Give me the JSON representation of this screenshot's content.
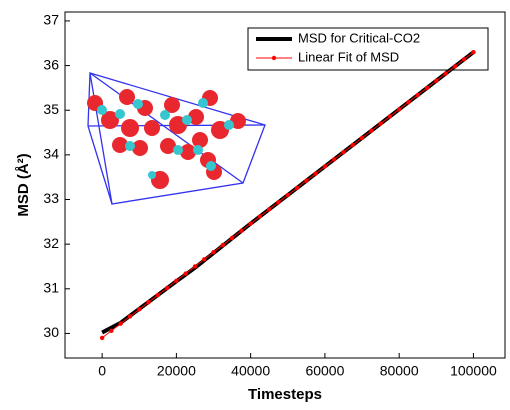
{
  "chart_data": {
    "type": "line",
    "x_label": "Timesteps",
    "y_label": "MSD (Å²)",
    "xlim": [
      -10000,
      108500
    ],
    "ylim": [
      29.45,
      37.2
    ],
    "xticks": [
      0,
      20000,
      40000,
      60000,
      80000,
      100000
    ],
    "yticks": [
      30,
      31,
      32,
      33,
      34,
      35,
      36,
      37
    ],
    "legend": "upper right",
    "series": [
      {
        "name": "MSD for Critical-CO2",
        "color": "#000000",
        "style": "thick-line",
        "x": [
          0,
          5000,
          10000,
          15000,
          20000,
          25000,
          30000,
          35000,
          40000,
          45000,
          50000,
          55000,
          60000,
          65000,
          70000,
          75000,
          80000,
          85000,
          90000,
          95000,
          100000
        ],
        "values": [
          30.02,
          30.24,
          30.55,
          30.86,
          31.17,
          31.47,
          31.8,
          32.13,
          32.46,
          32.78,
          33.1,
          33.42,
          33.74,
          34.06,
          34.38,
          34.7,
          35.02,
          35.34,
          35.66,
          35.98,
          36.3
        ]
      },
      {
        "name": "Linear Fit of MSD",
        "color": "#ff0000",
        "style": "line-markers",
        "x": [
          0,
          2500,
          5000,
          7500,
          10000,
          12500,
          15000,
          17500,
          20000,
          22500,
          25000,
          27500,
          30000,
          32500,
          35000,
          37500,
          40000,
          42500,
          45000,
          47500,
          50000,
          52500,
          55000,
          57500,
          60000,
          62500,
          65000,
          67500,
          70000,
          72500,
          75000,
          77500,
          80000,
          82500,
          85000,
          87500,
          90000,
          92500,
          95000,
          97500,
          100000
        ],
        "values": [
          29.9,
          30.06,
          30.22,
          30.38,
          30.54,
          30.7,
          30.86,
          31.02,
          31.18,
          31.34,
          31.5,
          31.66,
          31.82,
          31.98,
          32.14,
          32.3,
          32.46,
          32.62,
          32.78,
          32.94,
          33.1,
          33.26,
          33.42,
          33.58,
          33.74,
          33.9,
          34.06,
          34.22,
          34.38,
          34.54,
          34.7,
          34.86,
          35.02,
          35.18,
          35.34,
          35.5,
          35.66,
          35.82,
          35.98,
          36.14,
          36.3
        ]
      }
    ]
  }
}
